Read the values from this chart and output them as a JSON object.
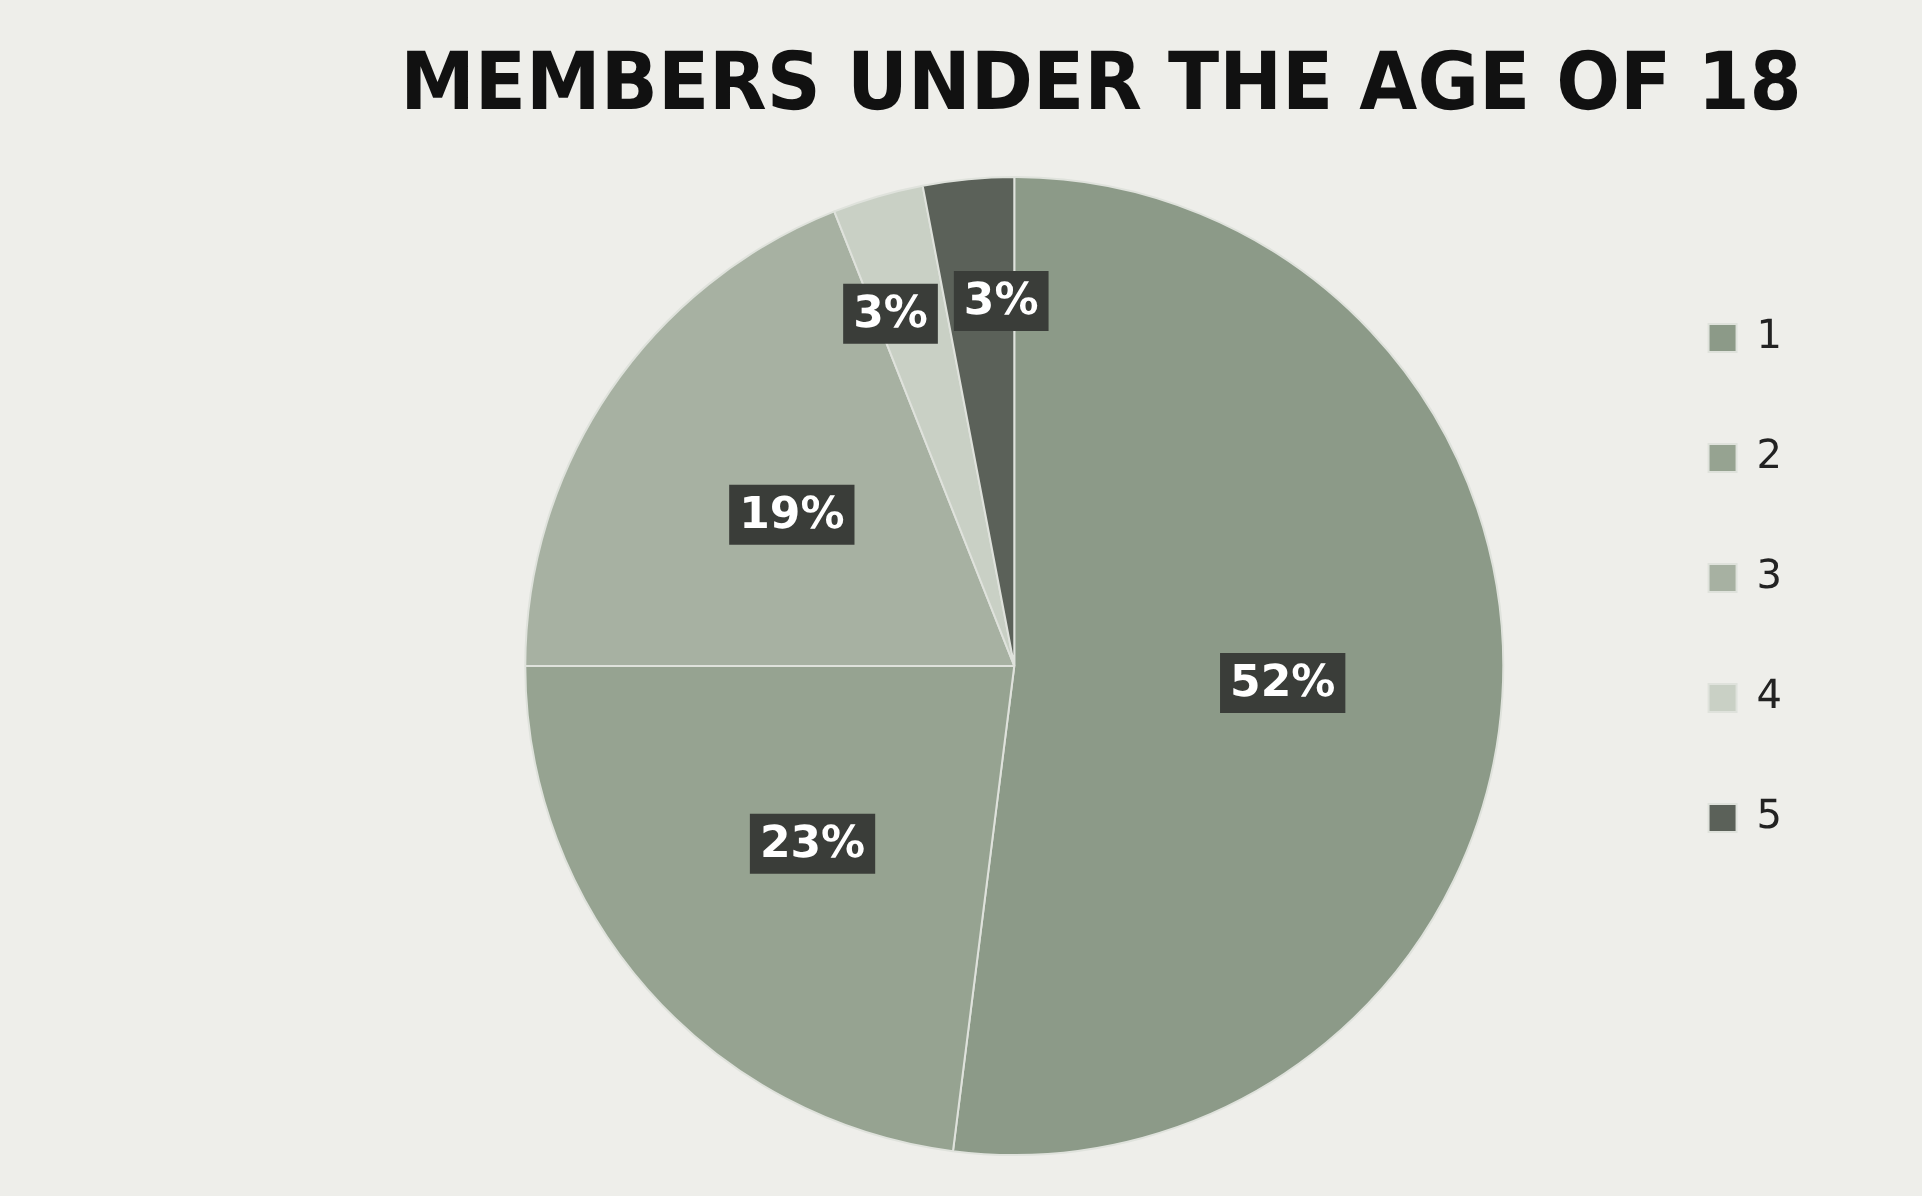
{
  "chart_data": {
    "type": "pie",
    "title": "MEMBERS UNDER THE AGE OF 18",
    "categories": [
      "1",
      "2",
      "3",
      "4",
      "5"
    ],
    "values": [
      52,
      23,
      19,
      3,
      3
    ],
    "value_labels": [
      "52%",
      "23%",
      "19%",
      "3%",
      "3%"
    ],
    "colors": [
      "#8c9a88",
      "#96a391",
      "#a7b1a2",
      "#c9d0c5",
      "#5b6159"
    ],
    "legend": "right"
  }
}
